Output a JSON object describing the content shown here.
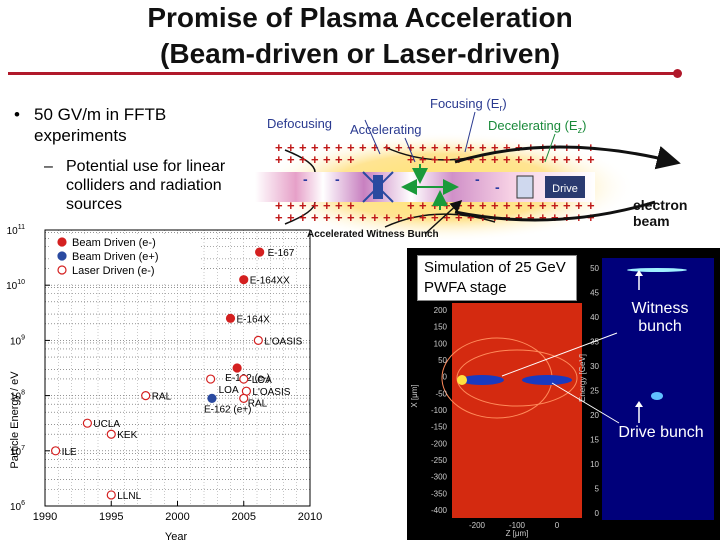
{
  "slide": {
    "title_line1": "Promise of Plasma Acceleration",
    "title_line2": "(Beam-driven or Laser-driven)",
    "bullet_glyph": "•",
    "bullet": "50 GV/m in FFTB experiments",
    "dash_glyph": "–",
    "sub_bullet": "Potential use for linear colliders and radiation sources"
  },
  "diagram": {
    "focusing": "Focusing (E",
    "focusing_sub": "r",
    "defocusing": "Defocusing",
    "accelerating": "Accelerating",
    "decelerating": "Decelerating (E",
    "decelerating_sub": "z",
    "drive": "Drive",
    "electron_beam": [
      "electron",
      "beam"
    ],
    "witness": "Accelerated Witness Bunch",
    "plus": "+",
    "minus": "-"
  },
  "colors": {
    "accent": "#b0182a",
    "beam_electron": "#d42020",
    "beam_positron": "#2a4aa0",
    "laser": "#d42020"
  },
  "chart_data": {
    "type": "scatter",
    "xlabel": "Year",
    "ylabel": "Particle Energy / eV",
    "x_ticks": [
      "1990",
      "1995",
      "2000",
      "2005",
      "2010"
    ],
    "y_ticks": [
      {
        "base": "10",
        "exp": "11",
        "value": 11
      },
      {
        "base": "10",
        "exp": "10",
        "value": 10
      },
      {
        "base": "10",
        "exp": "9",
        "value": 9
      },
      {
        "base": "10",
        "exp": "8",
        "value": 8
      },
      {
        "base": "10",
        "exp": "7",
        "value": 7
      },
      {
        "base": "10",
        "exp": "6",
        "value": 6
      }
    ],
    "xlim": [
      1990,
      2010
    ],
    "ylim_log10": [
      6,
      11
    ],
    "legend": [
      {
        "label": "Beam Driven (e-)",
        "style": "filled-red"
      },
      {
        "label": "Beam Driven (e+)",
        "style": "filled-blue"
      },
      {
        "label": "Laser Driven (e-)",
        "style": "open-red"
      }
    ],
    "points": [
      {
        "label": "E-167",
        "year": 2006.2,
        "log10E": 10.6,
        "style": "filled-red"
      },
      {
        "label": "E-164XX",
        "year": 2005.0,
        "log10E": 10.1,
        "style": "filled-red"
      },
      {
        "label": "E-164X",
        "year": 2004.0,
        "log10E": 9.4,
        "style": "filled-red"
      },
      {
        "label": "L'OASIS",
        "year": 2006.1,
        "log10E": 9.0,
        "style": "open-red"
      },
      {
        "label": "E-162 (e-)",
        "year": 2004.5,
        "log10E": 8.5,
        "style": "filled-red"
      },
      {
        "label": "LOA",
        "year": 2002.5,
        "log10E": 8.3,
        "style": "open-red"
      },
      {
        "label": "LOA",
        "year": 2005.0,
        "log10E": 8.3,
        "style": "open-red"
      },
      {
        "label": "L'OASIS",
        "year": 2005.2,
        "log10E": 8.08,
        "style": "open-red"
      },
      {
        "label": "RAL",
        "year": 2005.0,
        "log10E": 7.95,
        "style": "open-red"
      },
      {
        "label": "E-162 (e+)",
        "year": 2002.6,
        "log10E": 7.95,
        "style": "filled-blue"
      },
      {
        "label": "RAL",
        "year": 1997.6,
        "log10E": 8.0,
        "style": "open-red"
      },
      {
        "label": "UCLA",
        "year": 1993.2,
        "log10E": 7.5,
        "style": "open-red"
      },
      {
        "label": "KEK",
        "year": 1995.0,
        "log10E": 7.3,
        "style": "open-red"
      },
      {
        "label": "ILE",
        "year": 1990.8,
        "log10E": 7.0,
        "style": "open-red"
      },
      {
        "label": "LLNL",
        "year": 1995.0,
        "log10E": 6.2,
        "style": "open-red"
      }
    ]
  },
  "simulation": {
    "label": "Simulation of 25 GeV PWFA stage",
    "witness_line1": "Witness",
    "witness_line2": "bunch",
    "drive_bunch": "Drive bunch",
    "left_ylabel": "X [μm]",
    "left_xlabel": "Z [μm]",
    "left_y_ticks": [
      "200",
      "150",
      "100",
      "50",
      "0",
      "-50",
      "-100",
      "-150",
      "-200",
      "-250",
      "-300",
      "-350",
      "-400"
    ],
    "left_x_ticks": [
      "-200",
      "-100",
      "0"
    ],
    "right_ylabel": "Energy [GeV]",
    "right_y_ticks": [
      "50",
      "45",
      "40",
      "35",
      "30",
      "25",
      "20",
      "15",
      "10",
      "5",
      "0"
    ]
  }
}
